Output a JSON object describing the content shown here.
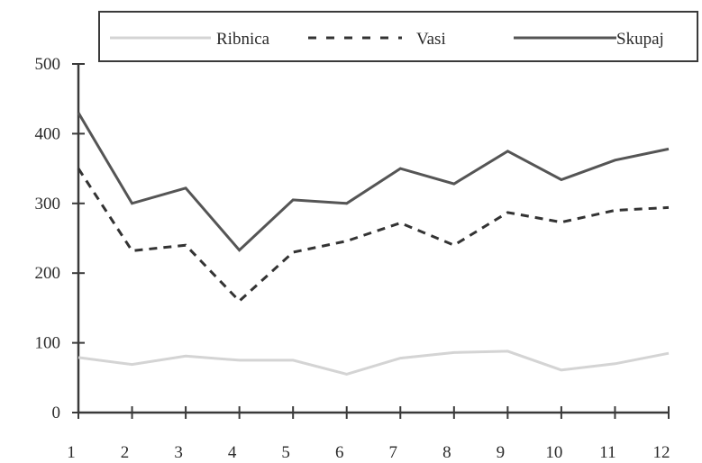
{
  "chart_data": {
    "type": "line",
    "title": "",
    "xlabel": "",
    "ylabel": "",
    "categories": [
      "1",
      "2",
      "3",
      "4",
      "5",
      "6",
      "7",
      "8",
      "9",
      "10",
      "11",
      "12"
    ],
    "ylim": [
      0,
      500
    ],
    "yticks": [
      0,
      100,
      200,
      300,
      400,
      500
    ],
    "grid": false,
    "legend_position": "top",
    "series": [
      {
        "name": "Ribnica",
        "style": "solid",
        "color": "#d4d4d4",
        "values": [
          79,
          69,
          81,
          75,
          75,
          55,
          78,
          86,
          88,
          61,
          70,
          85
        ]
      },
      {
        "name": "Vasi",
        "style": "dashed",
        "color": "#333333",
        "values": [
          350,
          232,
          240,
          160,
          230,
          246,
          272,
          240,
          287,
          273,
          290,
          294
        ]
      },
      {
        "name": "Skupaj",
        "style": "solid",
        "color": "#555555",
        "values": [
          430,
          300,
          322,
          233,
          305,
          300,
          350,
          328,
          375,
          334,
          362,
          378
        ]
      }
    ]
  }
}
